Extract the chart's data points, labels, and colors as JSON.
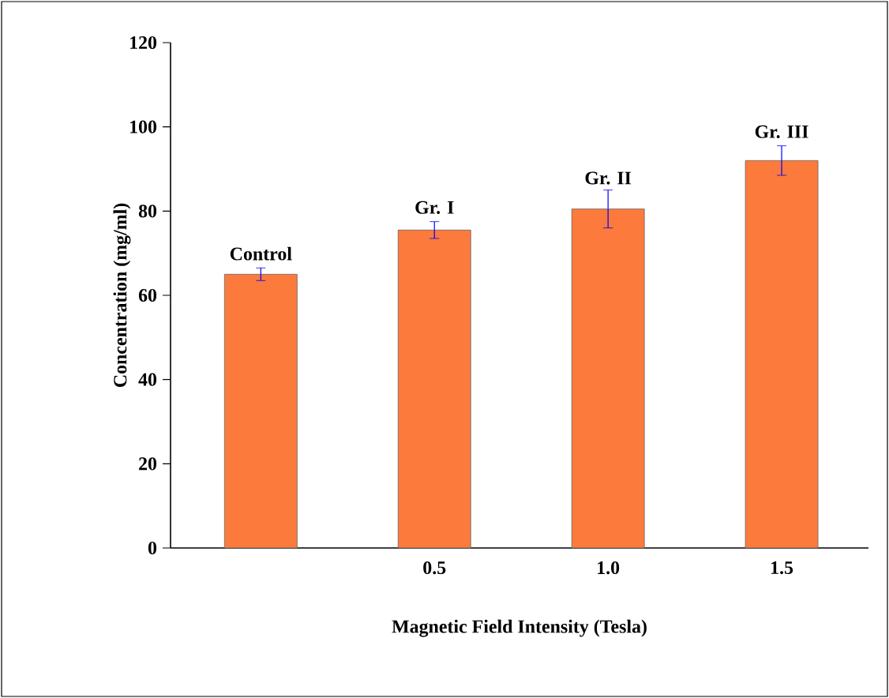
{
  "chart_data": {
    "type": "bar",
    "xlabel": "Magnetic Field Intensity (Tesla)",
    "ylabel": "Concentration (mg/ml)",
    "categories": [
      null,
      "0.5",
      "1.0",
      "1.5"
    ],
    "values": [
      65,
      75.5,
      80.5,
      92
    ],
    "errors": [
      1.5,
      2,
      4.5,
      3.5
    ],
    "color": "#fb7a3c",
    "ylim": [
      0,
      120
    ],
    "yticks": [
      0,
      20,
      40,
      60,
      80,
      100,
      120
    ],
    "annotations": [
      {
        "text": "Control",
        "y": 67
      },
      {
        "text": "Gr. I",
        "x": "0.5",
        "y": 78
      },
      {
        "text": "Gr. II",
        "x": "1.0",
        "y": 85
      },
      {
        "text": "Gr. III",
        "x": "1.5",
        "y": 96
      }
    ]
  }
}
